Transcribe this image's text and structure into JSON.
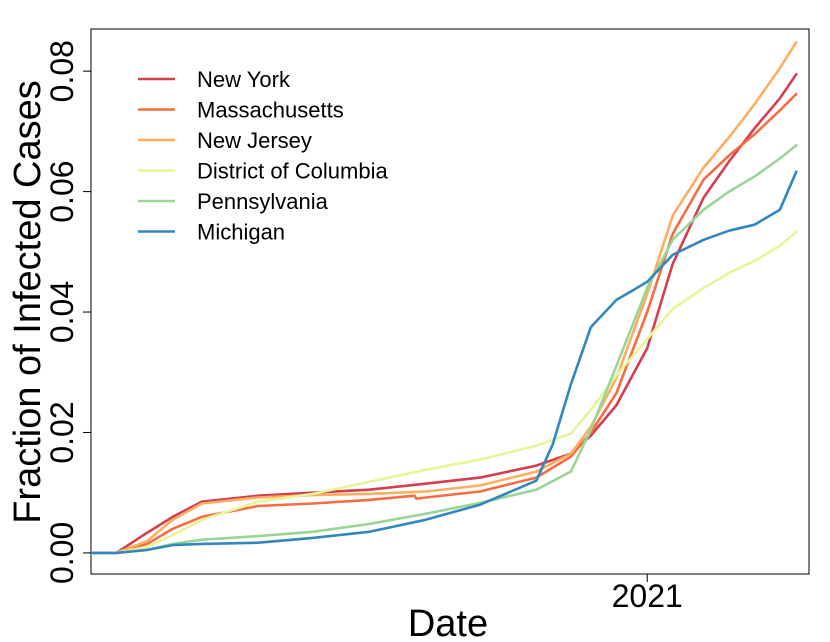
{
  "chart_data": {
    "type": "line",
    "title": "",
    "xlabel": "Date",
    "ylabel": "Fraction of Infected Cases",
    "xlim": [
      "2020-03-01",
      "2021-03-31"
    ],
    "ylim": [
      -0.0035,
      0.087
    ],
    "x_ticks": [
      {
        "value": "2021-01-01",
        "label": "2021"
      }
    ],
    "y_ticks": [
      {
        "value": 0.0,
        "label": "0.00"
      },
      {
        "value": 0.02,
        "label": "0.02"
      },
      {
        "value": 0.04,
        "label": "0.04"
      },
      {
        "value": 0.06,
        "label": "0.06"
      },
      {
        "value": 0.08,
        "label": "0.08"
      }
    ],
    "grid": false,
    "legend_position": "top-left",
    "series": [
      {
        "name": "New York",
        "color": "#d53e4f",
        "x": [
          "2020-03-01",
          "2020-03-15",
          "2020-03-30",
          "2020-04-15",
          "2020-05-01",
          "2020-06-01",
          "2020-07-01",
          "2020-08-01",
          "2020-09-01",
          "2020-10-01",
          "2020-11-01",
          "2020-11-20",
          "2020-12-01",
          "2020-12-15",
          "2021-01-01",
          "2021-01-15",
          "2021-02-01",
          "2021-02-15",
          "2021-03-01",
          "2021-03-15",
          "2021-03-24"
        ],
        "y": [
          0.0,
          0.0,
          0.003,
          0.006,
          0.0085,
          0.0095,
          0.01,
          0.0105,
          0.0115,
          0.0125,
          0.0145,
          0.0165,
          0.0195,
          0.0245,
          0.034,
          0.048,
          0.059,
          0.065,
          0.0705,
          0.0755,
          0.0795
        ]
      },
      {
        "name": "Massachusetts",
        "color": "#f46d43",
        "x": [
          "2020-03-01",
          "2020-03-15",
          "2020-04-01",
          "2020-04-15",
          "2020-05-01",
          "2020-06-01",
          "2020-07-01",
          "2020-08-01",
          "2020-08-26",
          "2020-08-27",
          "2020-09-01",
          "2020-10-01",
          "2020-11-01",
          "2020-11-20",
          "2020-12-01",
          "2020-12-15",
          "2021-01-01",
          "2021-01-15",
          "2021-02-01",
          "2021-02-15",
          "2021-03-01",
          "2021-03-15",
          "2021-03-24"
        ],
        "y": [
          0.0,
          0.0,
          0.0015,
          0.004,
          0.006,
          0.0078,
          0.0082,
          0.0088,
          0.0095,
          0.009,
          0.0092,
          0.0102,
          0.0125,
          0.016,
          0.02,
          0.0265,
          0.04,
          0.053,
          0.062,
          0.066,
          0.0695,
          0.0735,
          0.0762
        ]
      },
      {
        "name": "New Jersey",
        "color": "#fdae61",
        "x": [
          "2020-03-01",
          "2020-03-15",
          "2020-04-01",
          "2020-04-15",
          "2020-05-01",
          "2020-06-01",
          "2020-07-01",
          "2020-08-01",
          "2020-09-01",
          "2020-10-01",
          "2020-11-01",
          "2020-11-20",
          "2020-12-01",
          "2020-12-15",
          "2021-01-01",
          "2021-01-15",
          "2021-02-01",
          "2021-02-15",
          "2021-03-01",
          "2021-03-15",
          "2021-03-24"
        ],
        "y": [
          0.0,
          0.0,
          0.002,
          0.0055,
          0.0082,
          0.0092,
          0.0096,
          0.0098,
          0.0102,
          0.0112,
          0.0135,
          0.0165,
          0.021,
          0.029,
          0.043,
          0.056,
          0.064,
          0.069,
          0.0745,
          0.0805,
          0.0848
        ]
      },
      {
        "name": "District of Columbia",
        "color": "#e6f598",
        "x": [
          "2020-03-01",
          "2020-03-15",
          "2020-04-01",
          "2020-04-15",
          "2020-05-01",
          "2020-06-01",
          "2020-07-01",
          "2020-08-01",
          "2020-09-01",
          "2020-10-01",
          "2020-11-01",
          "2020-11-20",
          "2020-12-01",
          "2020-12-15",
          "2021-01-01",
          "2021-01-15",
          "2021-02-01",
          "2021-02-15",
          "2021-03-01",
          "2021-03-15",
          "2021-03-24"
        ],
        "y": [
          0.0,
          0.0,
          0.001,
          0.003,
          0.0055,
          0.0085,
          0.0098,
          0.0118,
          0.0138,
          0.0155,
          0.0178,
          0.0198,
          0.0238,
          0.0295,
          0.0355,
          0.0405,
          0.044,
          0.0465,
          0.0485,
          0.051,
          0.0533
        ]
      },
      {
        "name": "Pennsylvania",
        "color": "#99d594",
        "x": [
          "2020-03-01",
          "2020-03-15",
          "2020-04-01",
          "2020-04-15",
          "2020-05-01",
          "2020-06-01",
          "2020-07-01",
          "2020-08-01",
          "2020-09-01",
          "2020-10-01",
          "2020-11-01",
          "2020-11-20",
          "2020-12-01",
          "2020-12-15",
          "2021-01-01",
          "2021-01-15",
          "2021-02-01",
          "2021-02-15",
          "2021-03-01",
          "2021-03-15",
          "2021-03-24"
        ],
        "y": [
          0.0,
          0.0,
          0.0005,
          0.0015,
          0.0022,
          0.0028,
          0.0035,
          0.0048,
          0.0065,
          0.0083,
          0.0105,
          0.0135,
          0.0205,
          0.031,
          0.044,
          0.052,
          0.057,
          0.06,
          0.0625,
          0.0655,
          0.0677
        ]
      },
      {
        "name": "Michigan",
        "color": "#3288bd",
        "x": [
          "2020-03-01",
          "2020-03-15",
          "2020-04-01",
          "2020-04-15",
          "2020-05-01",
          "2020-06-01",
          "2020-07-01",
          "2020-08-01",
          "2020-09-01",
          "2020-10-01",
          "2020-11-01",
          "2020-11-10",
          "2020-11-20",
          "2020-12-01",
          "2020-12-15",
          "2021-01-01",
          "2021-01-15",
          "2021-02-01",
          "2021-02-15",
          "2021-03-01",
          "2021-03-15",
          "2021-03-24"
        ],
        "y": [
          0.0,
          0.0,
          0.0005,
          0.0013,
          0.0015,
          0.0017,
          0.0025,
          0.0035,
          0.0055,
          0.008,
          0.012,
          0.018,
          0.028,
          0.0375,
          0.042,
          0.045,
          0.0495,
          0.052,
          0.0535,
          0.0545,
          0.057,
          0.0633
        ]
      }
    ]
  }
}
